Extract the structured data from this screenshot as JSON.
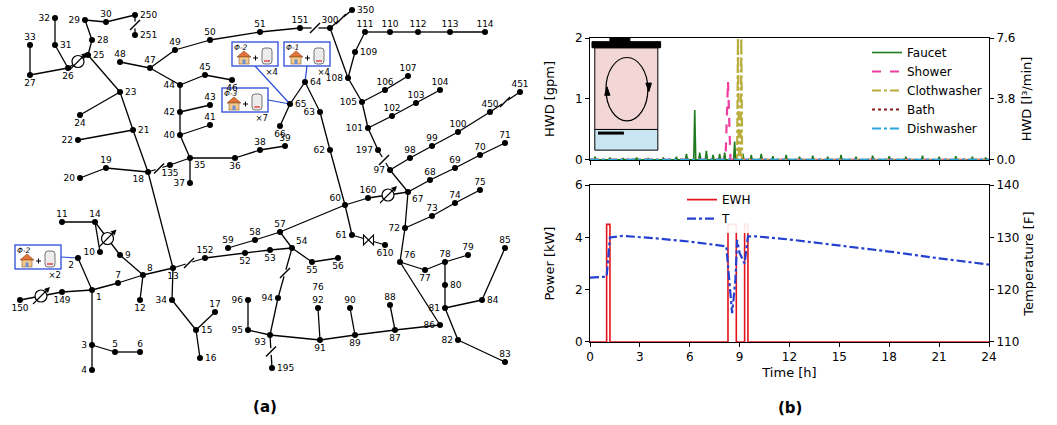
{
  "panel_labels": [
    "(a)",
    "(b)"
  ],
  "diagram": {
    "nodes": [
      "1",
      "2",
      "3",
      "4",
      "5",
      "6",
      "7",
      "8",
      "9",
      "10",
      "11",
      "12",
      "13",
      "14",
      "15",
      "16",
      "17",
      "18",
      "19",
      "20",
      "21",
      "22",
      "23",
      "24",
      "25",
      "26",
      "27",
      "28",
      "29",
      "30",
      "31",
      "32",
      "33",
      "34",
      "35",
      "36",
      "37",
      "38",
      "39",
      "40",
      "41",
      "42",
      "43",
      "44",
      "45",
      "46",
      "47",
      "48",
      "49",
      "50",
      "51",
      "151",
      "300",
      "350",
      "108",
      "109",
      "111",
      "110",
      "112",
      "113",
      "114",
      "105",
      "106",
      "107",
      "101",
      "102",
      "103",
      "104",
      "197",
      "97",
      "98",
      "99",
      "100",
      "450",
      "451",
      "67",
      "68",
      "69",
      "70",
      "71",
      "72",
      "73",
      "74",
      "75",
      "76",
      "77",
      "78",
      "79",
      "80",
      "81",
      "82",
      "83",
      "84",
      "85",
      "86",
      "87",
      "88",
      "89",
      "90",
      "91",
      "92",
      "93",
      "94",
      "95",
      "96",
      "195",
      "52",
      "53",
      "54",
      "55",
      "56",
      "57",
      "58",
      "59",
      "60",
      "61",
      "610",
      "62",
      "63",
      "64",
      "65",
      "66",
      "160",
      "152",
      "135",
      "149",
      "150",
      "250",
      "251"
    ],
    "extra_labels": [
      "76"
    ],
    "edges": [
      [
        "150",
        "149"
      ],
      [
        "149",
        "1"
      ],
      [
        "1",
        "2"
      ],
      [
        "1",
        "3"
      ],
      [
        "3",
        "4"
      ],
      [
        "3",
        "5"
      ],
      [
        "5",
        "6"
      ],
      [
        "1",
        "7"
      ],
      [
        "7",
        "8"
      ],
      [
        "8",
        "12"
      ],
      [
        "8",
        "9"
      ],
      [
        "9",
        "14"
      ],
      [
        "14",
        "11"
      ],
      [
        "14",
        "10"
      ],
      [
        "8",
        "13"
      ],
      [
        "13",
        "34"
      ],
      [
        "34",
        "15"
      ],
      [
        "15",
        "16"
      ],
      [
        "15",
        "17"
      ],
      [
        "13",
        "152"
      ],
      [
        "152",
        "52"
      ],
      [
        "52",
        "53"
      ],
      [
        "53",
        "54"
      ],
      [
        "54",
        "55"
      ],
      [
        "55",
        "56"
      ],
      [
        "54",
        "57"
      ],
      [
        "57",
        "58"
      ],
      [
        "58",
        "59"
      ],
      [
        "57",
        "60"
      ],
      [
        "60",
        "61"
      ],
      [
        "61",
        "610"
      ],
      [
        "60",
        "62"
      ],
      [
        "62",
        "63"
      ],
      [
        "63",
        "64"
      ],
      [
        "64",
        "65"
      ],
      [
        "65",
        "66"
      ],
      [
        "60",
        "160"
      ],
      [
        "160",
        "67"
      ],
      [
        "54",
        "94"
      ],
      [
        "94",
        "93"
      ],
      [
        "93",
        "95"
      ],
      [
        "95",
        "96"
      ],
      [
        "93",
        "195"
      ],
      [
        "91",
        "93"
      ],
      [
        "91",
        "92"
      ],
      [
        "89",
        "91"
      ],
      [
        "89",
        "90"
      ],
      [
        "87",
        "89"
      ],
      [
        "87",
        "88"
      ],
      [
        "86",
        "87"
      ],
      [
        "76",
        "86"
      ],
      [
        "67",
        "72"
      ],
      [
        "72",
        "73"
      ],
      [
        "73",
        "74"
      ],
      [
        "74",
        "75"
      ],
      [
        "72",
        "76"
      ],
      [
        "76",
        "77"
      ],
      [
        "77",
        "78"
      ],
      [
        "78",
        "79"
      ],
      [
        "78",
        "80"
      ],
      [
        "80",
        "81"
      ],
      [
        "81",
        "82"
      ],
      [
        "82",
        "83"
      ],
      [
        "81",
        "84"
      ],
      [
        "84",
        "85"
      ],
      [
        "67",
        "68"
      ],
      [
        "68",
        "69"
      ],
      [
        "69",
        "70"
      ],
      [
        "70",
        "71"
      ],
      [
        "67",
        "97"
      ],
      [
        "97",
        "98"
      ],
      [
        "98",
        "99"
      ],
      [
        "99",
        "100"
      ],
      [
        "100",
        "450"
      ],
      [
        "450",
        "451"
      ],
      [
        "97",
        "197"
      ],
      [
        "197",
        "101"
      ],
      [
        "101",
        "102"
      ],
      [
        "102",
        "103"
      ],
      [
        "103",
        "104"
      ],
      [
        "101",
        "105"
      ],
      [
        "105",
        "106"
      ],
      [
        "106",
        "107"
      ],
      [
        "105",
        "108"
      ],
      [
        "108",
        "109"
      ],
      [
        "109",
        "111"
      ],
      [
        "111",
        "110"
      ],
      [
        "110",
        "112"
      ],
      [
        "112",
        "113"
      ],
      [
        "113",
        "114"
      ],
      [
        "108",
        "300"
      ],
      [
        "300",
        "350"
      ],
      [
        "151",
        "300"
      ],
      [
        "51",
        "151"
      ],
      [
        "50",
        "51"
      ],
      [
        "49",
        "50"
      ],
      [
        "47",
        "49"
      ],
      [
        "44",
        "47"
      ],
      [
        "47",
        "48"
      ],
      [
        "42",
        "44"
      ],
      [
        "44",
        "45"
      ],
      [
        "45",
        "46"
      ],
      [
        "40",
        "42"
      ],
      [
        "42",
        "43"
      ],
      [
        "40",
        "41"
      ],
      [
        "35",
        "40"
      ],
      [
        "35",
        "36"
      ],
      [
        "35",
        "37"
      ],
      [
        "36",
        "38"
      ],
      [
        "38",
        "39"
      ],
      [
        "135",
        "35"
      ],
      [
        "18",
        "135"
      ],
      [
        "13",
        "18"
      ],
      [
        "18",
        "19"
      ],
      [
        "19",
        "20"
      ],
      [
        "18",
        "21"
      ],
      [
        "21",
        "22"
      ],
      [
        "21",
        "23"
      ],
      [
        "23",
        "24"
      ],
      [
        "23",
        "25"
      ],
      [
        "25",
        "26"
      ],
      [
        "26",
        "27"
      ],
      [
        "26",
        "31"
      ],
      [
        "31",
        "32"
      ],
      [
        "27",
        "33"
      ],
      [
        "25",
        "28"
      ],
      [
        "28",
        "29"
      ],
      [
        "29",
        "30"
      ],
      [
        "30",
        "250"
      ],
      [
        "250",
        "251"
      ]
    ],
    "switches": [
      [
        "13",
        "152"
      ],
      [
        "18",
        "135"
      ],
      [
        "97",
        "197"
      ],
      [
        "250",
        "251"
      ],
      [
        "450",
        "451"
      ],
      [
        "54",
        "94"
      ],
      [
        "151",
        "300"
      ],
      [
        "300",
        "350"
      ],
      [
        "93",
        "195"
      ]
    ],
    "regulators": [
      [
        "150",
        "149"
      ],
      [
        "9",
        "14"
      ],
      [
        "25",
        "26"
      ],
      [
        "160",
        "67"
      ]
    ],
    "transformers": [
      [
        "61",
        "610"
      ]
    ],
    "groups": [
      {
        "phase": "Φ-1",
        "count": "×4",
        "node": "64"
      },
      {
        "phase": "Φ-2",
        "count": "×4",
        "node": "65"
      },
      {
        "phase": "Φ-3",
        "count": "×7",
        "node": "65"
      },
      {
        "phase": "Φ-2",
        "count": "×2",
        "node": "2"
      }
    ]
  },
  "chart_data": [
    {
      "type": "line",
      "ylabel": "HWD [gpm]",
      "y2label": "HWD [l³/min]",
      "xlim": [
        0,
        24
      ],
      "xticks": [
        0,
        3,
        6,
        9,
        12,
        15,
        18,
        21,
        24
      ],
      "ylim": [
        0,
        2
      ],
      "yticks": [
        0,
        1,
        2
      ],
      "y2lim": [
        0,
        7.6
      ],
      "y2ticks": [
        {
          "value": 0,
          "label": "0.0"
        },
        {
          "value": 3.8,
          "label": "3.8"
        },
        {
          "value": 7.6,
          "label": "7.6"
        }
      ],
      "tick_labels": "y",
      "grid": false,
      "legend": "upper right",
      "series": [
        {
          "name": "Faucet",
          "color": "#1e7b1e",
          "line_style": "solid",
          "x": [
            0,
            0.24,
            0.3,
            0.36,
            1.14,
            1.2,
            1.26,
            1.94,
            2.0,
            2.06,
            2.74,
            2.8,
            2.86,
            3.44,
            3.5,
            3.56,
            4.34,
            4.4,
            4.46,
            5.14,
            5.2,
            5.26,
            5.74,
            5.8,
            5.86,
            6.24,
            6.3,
            6.36,
            6.54,
            6.6,
            6.66,
            6.94,
            7.0,
            7.06,
            7.34,
            7.4,
            7.46,
            7.74,
            7.8,
            7.86,
            8.04,
            8.1,
            8.16,
            8.64,
            8.7,
            8.76,
            9.14,
            9.2,
            9.26,
            9.64,
            9.7,
            9.76,
            10.24,
            10.3,
            10.36,
            10.94,
            11.0,
            11.06,
            11.74,
            11.8,
            11.86,
            12.54,
            12.6,
            12.66,
            13.34,
            13.4,
            13.46,
            14.24,
            14.3,
            14.36,
            15.04,
            15.1,
            15.16,
            15.94,
            16.0,
            16.06,
            16.94,
            17.0,
            17.06,
            17.94,
            18.0,
            18.06,
            18.94,
            19.0,
            19.06,
            19.94,
            20.0,
            20.06,
            20.94,
            21.0,
            21.06,
            21.94,
            22.0,
            22.06,
            22.94,
            23.0,
            23.06,
            23.74,
            23.8,
            23.86,
            24
          ],
          "values": [
            0,
            0,
            0.05,
            0,
            0,
            0.04,
            0,
            0,
            0.03,
            0,
            0,
            0.04,
            0,
            0,
            0.03,
            0,
            0,
            0.04,
            0,
            0,
            0.05,
            0,
            0,
            0.1,
            0,
            0,
            0.82,
            0,
            0,
            0.12,
            0,
            0,
            0.15,
            0,
            0,
            0.08,
            0,
            0,
            0.1,
            0,
            0,
            0.12,
            0,
            0,
            0.3,
            0,
            0,
            0.1,
            0,
            0,
            0.08,
            0,
            0,
            0.1,
            0,
            0,
            0.06,
            0,
            0,
            0.08,
            0,
            0,
            0.05,
            0,
            0,
            0.07,
            0,
            0,
            0.05,
            0,
            0,
            0.08,
            0,
            0,
            0.05,
            0,
            0,
            0.07,
            0,
            0,
            0.06,
            0,
            0,
            0.05,
            0,
            0,
            0.07,
            0,
            0,
            0.05,
            0,
            0,
            0.06,
            0,
            0,
            0.05,
            0,
            0,
            0.04,
            0,
            0
          ]
        },
        {
          "name": "Shower",
          "color": "#ee3fa0",
          "line_style": "dashed",
          "x": [
            0,
            8.15,
            8.3,
            8.45,
            24
          ],
          "values": [
            0,
            0,
            1.3,
            0,
            0
          ]
        },
        {
          "name": "Clothwasher",
          "color": "#b9ad3c",
          "line_style": "dashdot",
          "x": [
            0,
            8.85,
            8.9,
            8.95,
            9.05,
            9.1,
            9.15,
            24
          ],
          "values": [
            0,
            0,
            2,
            0,
            0,
            2,
            0,
            0
          ]
        },
        {
          "name": "Bath",
          "color": "#8b1a1a",
          "line_style": "dotted",
          "x": [
            0,
            24
          ],
          "values": [
            0,
            0
          ]
        },
        {
          "name": "Dishwasher",
          "color": "#2aa6dc",
          "line_style": "dashdot",
          "x": [
            0,
            24
          ],
          "values": [
            0,
            0
          ]
        }
      ]
    },
    {
      "type": "line",
      "xlabel": "Time [h]",
      "ylabel": "Power [kW]",
      "y2label": "Temperature [F]",
      "xlim": [
        0,
        24
      ],
      "xticks": [
        0,
        3,
        6,
        9,
        12,
        15,
        18,
        21,
        24
      ],
      "ylim": [
        0,
        6
      ],
      "yticks": [
        0,
        2,
        4,
        6
      ],
      "y2lim": [
        110,
        140
      ],
      "y2ticks": [
        110,
        120,
        130,
        140
      ],
      "grid": false,
      "legend": "upper center",
      "series": [
        {
          "name": "EWH",
          "color": "#e3141c",
          "line_style": "solid",
          "x": [
            0,
            1.0,
            1.0,
            1.2,
            1.2,
            8.3,
            8.3,
            8.8,
            8.8,
            9.3,
            9.3,
            9.5,
            9.5,
            24
          ],
          "values": [
            0,
            0,
            4.5,
            4.5,
            0,
            0,
            4.5,
            4.5,
            0,
            0,
            4.5,
            4.5,
            0,
            0
          ]
        },
        {
          "name": "T",
          "axis": "y2",
          "color": "#2440d0",
          "line_style": "dashdot",
          "x": [
            0,
            1.0,
            1.2,
            2,
            4,
            6,
            8.2,
            8.4,
            8.55,
            8.75,
            8.85,
            9.0,
            9.3,
            9.5,
            10,
            12,
            15,
            18,
            21,
            24
          ],
          "values": [
            122.3,
            122.5,
            130,
            130.3,
            129.8,
            129.2,
            128.3,
            121,
            115.5,
            122,
            129.5,
            127,
            125,
            130.2,
            130.2,
            129.6,
            128.5,
            127.3,
            126,
            124.8
          ]
        }
      ]
    }
  ]
}
